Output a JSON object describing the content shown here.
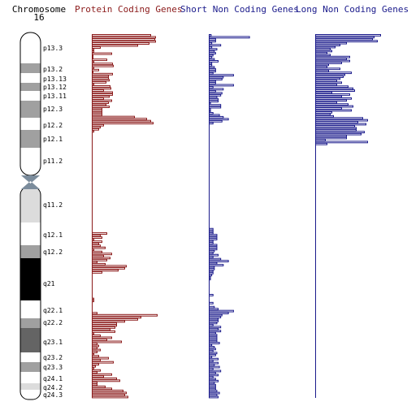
{
  "chart_data": {
    "type": "bar",
    "orientation": "horizontal",
    "chromosome": {
      "label": "Chromosome",
      "number": "16"
    },
    "bands": [
      {
        "name": "p13.3",
        "stain": "white"
      },
      {
        "name": "p13.2",
        "stain": "gray"
      },
      {
        "name": "p13.13",
        "stain": "white"
      },
      {
        "name": "p13.12",
        "stain": "gray"
      },
      {
        "name": "p13.11",
        "stain": "white"
      },
      {
        "name": "p12.3",
        "stain": "gray"
      },
      {
        "name": "p12.2",
        "stain": "white"
      },
      {
        "name": "p12.1",
        "stain": "gray"
      },
      {
        "name": "p11.2",
        "stain": "white"
      },
      {
        "name": "q11.2",
        "stain": "light"
      },
      {
        "name": "q12.1",
        "stain": "white"
      },
      {
        "name": "q12.2",
        "stain": "gray"
      },
      {
        "name": "q21",
        "stain": "black"
      },
      {
        "name": "q22.1",
        "stain": "white"
      },
      {
        "name": "q22.2",
        "stain": "gray"
      },
      {
        "name": "q23.1",
        "stain": "dark"
      },
      {
        "name": "q23.2",
        "stain": "white"
      },
      {
        "name": "q23.3",
        "stain": "gray"
      },
      {
        "name": "q24.1",
        "stain": "white"
      },
      {
        "name": "q24.2",
        "stain": "light"
      },
      {
        "name": "q24.3",
        "stain": "white"
      }
    ],
    "series": [
      {
        "name": "Protein Coding Genes",
        "color": "#8b1a1a",
        "values": [
          72,
          78,
          77,
          78,
          70,
          56,
          10,
          2,
          2,
          24,
          1,
          1,
          18,
          2,
          25,
          26,
          2,
          8,
          1,
          25,
          20,
          20,
          21,
          17,
          2,
          22,
          23,
          14,
          25,
          25,
          21,
          14,
          24,
          20,
          17,
          21,
          12,
          12,
          12,
          12,
          52,
          67,
          72,
          75,
          14,
          10,
          8,
          2,
          0,
          0,
          0,
          0,
          0,
          0,
          0,
          0,
          0,
          0,
          0,
          0,
          0,
          0,
          0,
          0,
          0,
          0,
          0,
          0,
          0,
          0,
          0,
          0,
          0,
          0,
          0,
          0,
          0,
          0,
          0,
          0,
          0,
          0,
          0,
          0,
          0,
          0,
          0,
          0,
          0,
          0,
          0,
          0,
          0,
          0,
          0,
          0,
          0,
          18,
          10,
          12,
          2,
          12,
          8,
          10,
          16,
          2,
          12,
          24,
          14,
          22,
          18,
          6,
          16,
          42,
          40,
          32,
          12,
          0,
          0,
          0,
          0,
          0,
          0,
          0,
          0,
          0,
          0,
          0,
          0,
          2,
          2,
          0,
          0,
          0,
          0,
          0,
          6,
          80,
          60,
          56,
          40,
          30,
          30,
          28,
          22,
          28,
          2,
          10,
          24,
          18,
          36,
          6,
          8,
          6,
          10,
          6,
          2,
          8,
          20,
          10,
          26,
          8,
          4,
          2,
          10,
          6,
          24,
          14,
          30,
          34,
          6,
          6,
          16,
          24,
          38,
          42,
          40,
          44
        ],
        "value_max": 80
      },
      {
        "name": "Short Non Coding Genes",
        "color": "#1a1a8b",
        "values": [
          3,
          63,
          10,
          10,
          4,
          18,
          4,
          12,
          8,
          10,
          6,
          4,
          8,
          14,
          4,
          4,
          8,
          10,
          10,
          6,
          38,
          22,
          20,
          10,
          10,
          38,
          6,
          22,
          10,
          20,
          18,
          12,
          14,
          14,
          2,
          18,
          18,
          2,
          2,
          6,
          16,
          22,
          30,
          20,
          6,
          0,
          0,
          0,
          0,
          0,
          0,
          0,
          0,
          0,
          0,
          0,
          0,
          0,
          0,
          0,
          0,
          0,
          0,
          0,
          0,
          0,
          0,
          0,
          0,
          0,
          0,
          0,
          0,
          0,
          0,
          0,
          0,
          0,
          0,
          0,
          0,
          0,
          0,
          0,
          0,
          0,
          0,
          0,
          0,
          0,
          0,
          0,
          0,
          0,
          0,
          0,
          0,
          6,
          6,
          6,
          12,
          12,
          12,
          6,
          6,
          12,
          12,
          12,
          8,
          6,
          14,
          6,
          18,
          30,
          12,
          22,
          8,
          8,
          6,
          6,
          4,
          2,
          2,
          0,
          0,
          0,
          0,
          0,
          0,
          0,
          6,
          0,
          0,
          0,
          6,
          0,
          8,
          14,
          38,
          30,
          20,
          18,
          14,
          14,
          12,
          6,
          18,
          14,
          18,
          10,
          12,
          12,
          12,
          12,
          16,
          4,
          8,
          10,
          6,
          12,
          10,
          4,
          14,
          6,
          14,
          8,
          16,
          6,
          18,
          10,
          14,
          6,
          10,
          14,
          8,
          10,
          10,
          10,
          12,
          16,
          12,
          14
        ],
        "value_max": 80
      },
      {
        "name": "Long Non Coding Genes",
        "color": "#1a1a8b",
        "values": [
          80,
          72,
          70,
          76,
          38,
          30,
          24,
          18,
          20,
          14,
          18,
          42,
          38,
          42,
          32,
          16,
          14,
          30,
          16,
          44,
          36,
          34,
          30,
          26,
          32,
          26,
          40,
          46,
          48,
          20,
          42,
          32,
          44,
          38,
          26,
          40,
          46,
          32,
          44,
          20,
          18,
          22,
          58,
          64,
          52,
          62,
          48,
          50,
          50,
          60,
          56,
          38,
          38,
          12,
          64,
          14,
          0,
          0,
          0,
          0,
          0,
          0,
          0,
          0,
          0,
          0,
          0,
          0,
          0,
          0,
          0,
          0,
          0,
          0,
          0,
          0,
          0,
          0,
          0,
          0,
          0,
          0,
          0,
          0,
          0,
          0,
          0,
          0,
          0,
          0,
          0,
          0,
          0,
          0,
          0,
          0,
          0,
          0,
          0,
          0,
          0,
          0,
          0,
          0,
          0,
          0,
          0,
          0,
          0,
          0,
          0,
          0,
          0,
          0,
          0,
          0,
          0,
          0,
          0,
          0,
          0,
          0,
          0,
          0,
          0,
          0,
          0,
          0,
          0,
          0,
          0,
          0,
          0,
          0,
          0,
          0,
          0,
          0,
          0,
          0,
          0,
          0,
          0,
          0,
          0,
          0,
          0,
          0,
          0,
          0,
          0,
          0,
          0,
          0,
          0,
          0,
          0,
          0,
          0,
          0,
          0,
          0,
          0,
          0,
          0,
          0,
          0,
          0,
          0,
          0,
          0,
          0,
          0,
          0,
          0,
          0,
          0,
          0,
          0,
          0,
          0,
          0,
          0,
          0
        ],
        "value_max": 80
      }
    ],
    "legend_placement": "top",
    "grid": false
  }
}
